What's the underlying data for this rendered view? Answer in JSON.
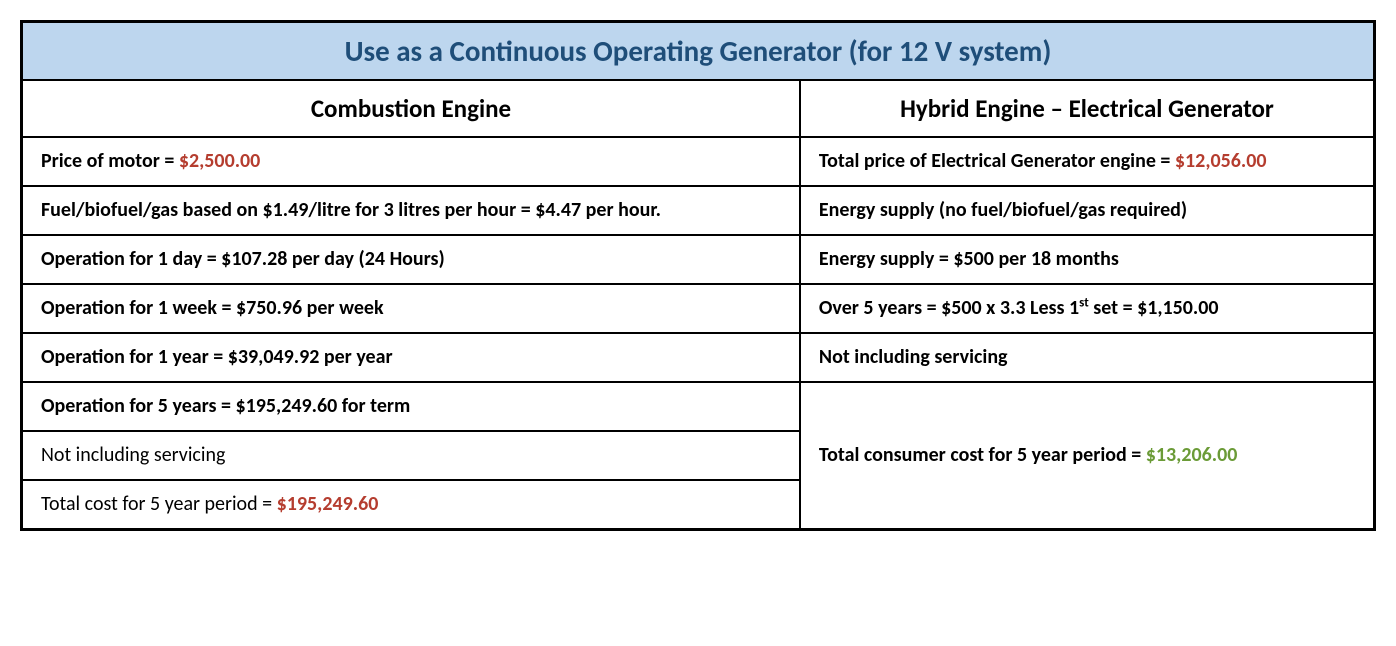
{
  "title": "Use as a Continuous Operating Generator (for 12 V system)",
  "colors": {
    "title_bg": "#bdd6ee",
    "title_text": "#1f4e79",
    "price_red": "#b53d2f",
    "price_green": "#6b9b37",
    "border": "#000000",
    "background": "#ffffff"
  },
  "typography": {
    "title_fontsize": 29,
    "header_fontsize": 25,
    "cell_fontsize": 20,
    "font_family": "Calibri"
  },
  "left": {
    "header": "Combustion Engine",
    "r1_label": "Price of motor = ",
    "r1_price": "$2,500.00",
    "r2": "Fuel/biofuel/gas based on $1.49/litre for 3 litres per hour = $4.47 per hour.",
    "r3": "Operation for 1 day = $107.28 per day (24 Hours)",
    "r4": "Operation for 1 week = $750.96 per week",
    "r5": "Operation for 1 year = $39,049.92 per year",
    "r6": "Operation for 5 years = $195,249.60 for term",
    "r7": "Not including servicing",
    "r8_label": "Total cost for 5 year period = ",
    "r8_price": "$195,249.60"
  },
  "right": {
    "header": "Hybrid Engine – Electrical Generator",
    "r1_label": "Total price of Electrical Generator engine = ",
    "r1_price": "$12,056.00",
    "r2": "Energy supply (no fuel/biofuel/gas required)",
    "r3": "Energy supply = $500 per 18 months",
    "r4_pre": "Over 5 years = $500 x 3.3 Less 1",
    "r4_sup": "st",
    "r4_post": " set = $1,150.00",
    "r5": "Not including servicing",
    "total_label": "Total consumer cost for 5 year period = ",
    "total_price": "$13,206.00"
  }
}
